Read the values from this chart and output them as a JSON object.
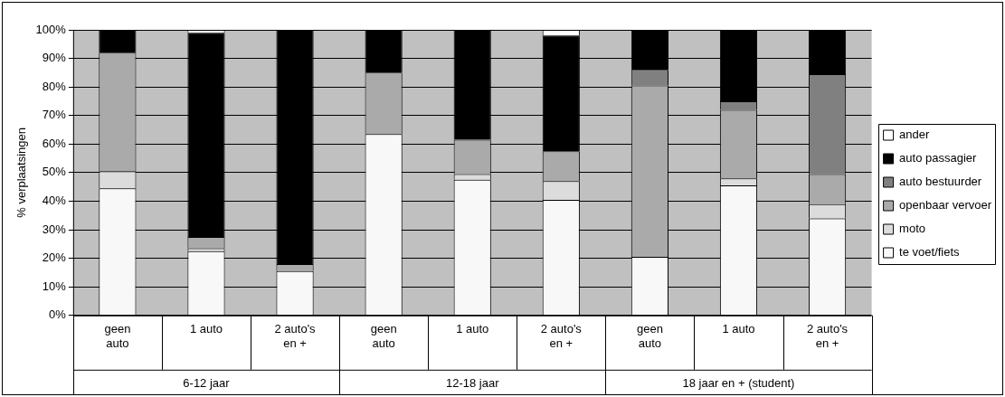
{
  "chart_data": {
    "type": "bar",
    "stacked": true,
    "ylabel": "% verplaatsingen",
    "categories": [
      "geen auto",
      "1 auto",
      "2 auto's en +",
      "geen auto",
      "1 auto",
      "2 auto's en +",
      "geen auto",
      "1 auto",
      "2 auto's en +"
    ],
    "series": [
      {
        "name": "te voet/fiets",
        "color": "#f8f8f8",
        "values": [
          44.5,
          22.5,
          15.5,
          63.5,
          47.5,
          40.5,
          20.5,
          45.5,
          34
        ]
      },
      {
        "name": "moto",
        "color": "#dcdcdc",
        "values": [
          6,
          1,
          0,
          0,
          2,
          6.5,
          0,
          2.5,
          5
        ]
      },
      {
        "name": "openbaar vervoer",
        "color": "#aaaaaa",
        "values": [
          41.5,
          4,
          2.5,
          21.5,
          12,
          10.5,
          60,
          24,
          10.5
        ]
      },
      {
        "name": "auto bestuurder",
        "color": "#808080",
        "values": [
          0,
          0,
          0,
          0,
          0,
          0,
          5.5,
          3,
          35
        ]
      },
      {
        "name": "auto passagier",
        "color": "#000000",
        "values": [
          8,
          71.5,
          82,
          15,
          38.5,
          40.5,
          14,
          25,
          15.5
        ]
      },
      {
        "name": "ander",
        "color": "#ffffff",
        "values": [
          0,
          1,
          0,
          0,
          0,
          2,
          0,
          0,
          0
        ]
      }
    ],
    "annotations": [
      "6-12 jaar",
      "12-18 jaar",
      "18 jaar en + (student)"
    ],
    "ylim": [
      0,
      100
    ],
    "yticks": [
      {
        "value": 0,
        "label": "0%"
      },
      {
        "value": 10,
        "label": "10%"
      },
      {
        "value": 20,
        "label": "20%"
      },
      {
        "value": 30,
        "label": "30%"
      },
      {
        "value": 40,
        "label": "40%"
      },
      {
        "value": 50,
        "label": "50%"
      },
      {
        "value": 60,
        "label": "60%"
      },
      {
        "value": 70,
        "label": "70%"
      },
      {
        "value": 80,
        "label": "80%"
      },
      {
        "value": 90,
        "label": "90%"
      },
      {
        "value": 100,
        "label": "100%"
      }
    ],
    "grid": "y",
    "legend": "right"
  }
}
